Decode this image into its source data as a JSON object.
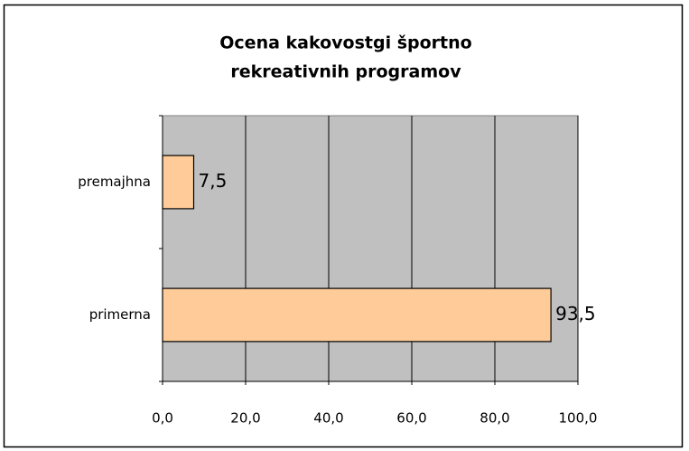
{
  "chart_data": {
    "type": "bar",
    "orientation": "horizontal",
    "title": [
      "Ocena kakovostgi športno",
      "rekreativnih programov"
    ],
    "categories": [
      "premajhna",
      "primerna"
    ],
    "values": [
      7.5,
      93.5
    ],
    "value_labels": [
      "7,5",
      "93,5"
    ],
    "color": "#ffcc99",
    "xlim": [
      0,
      100
    ],
    "xticks": [
      {
        "value": 0,
        "label": "0,0"
      },
      {
        "value": 20,
        "label": "20,0"
      },
      {
        "value": 40,
        "label": "40,0"
      },
      {
        "value": 60,
        "label": "60,0"
      },
      {
        "value": 80,
        "label": "80,0"
      },
      {
        "value": 100,
        "label": "100,0"
      }
    ],
    "grid": true
  }
}
